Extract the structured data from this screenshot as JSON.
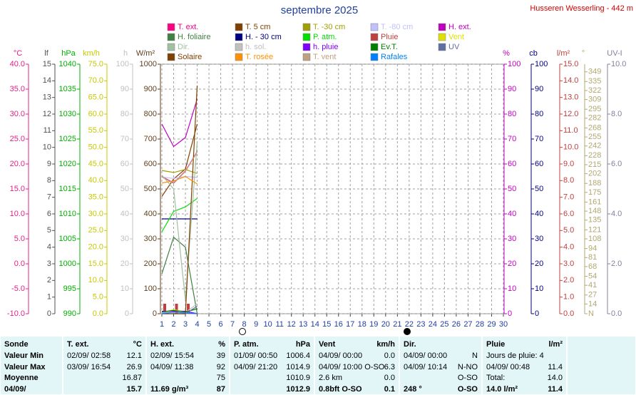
{
  "chart_data": {
    "type": "line",
    "title": "septembre 2025",
    "subtitle": "Husseren Wesserling - 442 m",
    "xlim": [
      1,
      30
    ],
    "xticks": [
      1,
      2,
      3,
      4,
      5,
      6,
      7,
      8,
      9,
      10,
      11,
      12,
      13,
      14,
      15,
      16,
      17,
      18,
      19,
      20,
      21,
      22,
      23,
      24,
      25,
      26,
      27,
      28,
      29,
      30
    ],
    "x": [
      1,
      2,
      3,
      4
    ],
    "axes": [
      {
        "label": "°C",
        "color": "#e0208a",
        "side": "left",
        "ylim": [
          -10,
          40
        ],
        "yticks": [
          {
            "value": -10,
            "label": "-10.0"
          },
          {
            "value": -5,
            "label": "-5.0"
          },
          {
            "value": 0,
            "label": "0.0"
          },
          {
            "value": 5,
            "label": "5.0"
          },
          {
            "value": 10,
            "label": "10.0"
          },
          {
            "value": 15,
            "label": "15.0"
          },
          {
            "value": 20,
            "label": "20.0"
          },
          {
            "value": 25,
            "label": "25.0"
          },
          {
            "value": 30,
            "label": "30.0"
          },
          {
            "value": 35,
            "label": "35.0"
          },
          {
            "value": 40,
            "label": "40.0"
          }
        ]
      },
      {
        "label": "lf",
        "color": "#505050",
        "side": "left",
        "ylim": [
          0,
          15
        ],
        "yticks": [
          0,
          1,
          2,
          3,
          4,
          5,
          6,
          7,
          8,
          9,
          10,
          11,
          12,
          13,
          14,
          15
        ]
      },
      {
        "label": "hPa",
        "color": "#00b000",
        "side": "left",
        "ylim": [
          990,
          1040
        ],
        "yticks": [
          990,
          995,
          1000,
          1005,
          1010,
          1015,
          1020,
          1025,
          1030,
          1035,
          1040
        ]
      },
      {
        "label": "km/h",
        "color": "#c8c800",
        "side": "left",
        "ylim": [
          0,
          75
        ],
        "yticks": [
          {
            "value": 0,
            "label": "0.0"
          },
          {
            "value": 5,
            "label": "5.0"
          },
          {
            "value": 10,
            "label": "10.0"
          },
          {
            "value": 15,
            "label": "15.0"
          },
          {
            "value": 20,
            "label": "20.0"
          },
          {
            "value": 25,
            "label": "25.0"
          },
          {
            "value": 30,
            "label": "30.0"
          },
          {
            "value": 35,
            "label": "35.0"
          },
          {
            "value": 40,
            "label": "40.0"
          },
          {
            "value": 45,
            "label": "45.0"
          },
          {
            "value": 50,
            "label": "50.0"
          },
          {
            "value": 55,
            "label": "55.0"
          },
          {
            "value": 60,
            "label": "60.0"
          },
          {
            "value": 65,
            "label": "65.0"
          },
          {
            "value": 70,
            "label": "70.0"
          },
          {
            "value": 75,
            "label": "75.0"
          }
        ]
      },
      {
        "label": "h",
        "color": "#c0c0c0",
        "side": "left",
        "ylim": [
          0,
          100
        ],
        "yticks": [
          0,
          10,
          20,
          30,
          40,
          50,
          60,
          70,
          80,
          90,
          100
        ]
      },
      {
        "label": "W/m²",
        "color": "#604020",
        "side": "left",
        "grid": true,
        "ylim": [
          0,
          1000
        ],
        "yticks": [
          0,
          100,
          200,
          300,
          400,
          500,
          600,
          700,
          800,
          900,
          1000
        ]
      },
      {
        "label": "%",
        "color": "#c000c0",
        "side": "right",
        "ylim": [
          0,
          100
        ],
        "yticks": [
          0,
          10,
          20,
          30,
          40,
          50,
          60,
          70,
          80,
          90,
          100
        ]
      },
      {
        "label": "cb",
        "color": "#000080",
        "side": "right",
        "ylim": [
          0,
          100
        ],
        "yticks": [
          0,
          10,
          20,
          30,
          40,
          50,
          60,
          70,
          80,
          90,
          100
        ]
      },
      {
        "label": "l/m²",
        "color": "#c04040",
        "side": "right",
        "ylim": [
          0,
          15
        ],
        "yticks": [
          {
            "value": 0,
            "label": "0.0"
          },
          {
            "value": 1,
            "label": "1.0"
          },
          {
            "value": 2,
            "label": "2.0"
          },
          {
            "value": 3,
            "label": "3.0"
          },
          {
            "value": 4,
            "label": "4.0"
          },
          {
            "value": 5,
            "label": "5.0"
          },
          {
            "value": 6,
            "label": "6.0"
          },
          {
            "value": 7,
            "label": "7.0"
          },
          {
            "value": 8,
            "label": "8.0"
          },
          {
            "value": 9,
            "label": "9.0"
          },
          {
            "value": 10,
            "label": "10.0"
          },
          {
            "value": 11,
            "label": "11.0"
          },
          {
            "value": 12,
            "label": "12.0"
          },
          {
            "value": 13,
            "label": "13.0"
          },
          {
            "value": 14,
            "label": "14.0"
          },
          {
            "value": 15,
            "label": "15.0"
          }
        ]
      },
      {
        "label": "°",
        "color": "#b0a870",
        "side": "right",
        "ylim": [
          0,
          360
        ],
        "yticks": [
          {
            "value": 0,
            "label": "N"
          },
          14,
          27,
          41,
          54,
          68,
          81,
          94,
          108,
          121,
          135,
          148,
          161,
          175,
          188,
          202,
          215,
          228,
          242,
          255,
          268,
          282,
          295,
          309,
          322,
          335,
          349
        ]
      },
      {
        "label": "UV-I",
        "color": "#8080a0",
        "side": "right",
        "ylim": [
          0,
          10
        ],
        "yticks": [
          {
            "value": 0,
            "label": "0.0"
          },
          {
            "value": 2,
            "label": "2.0"
          },
          {
            "value": 4,
            "label": "4.0"
          },
          {
            "value": 6,
            "label": "6.0"
          },
          {
            "value": 8,
            "label": "8.0"
          },
          {
            "value": 10,
            "label": "10.0"
          }
        ]
      }
    ],
    "series": [
      {
        "name": "T. ext.",
        "color": "#ff0080",
        "axis": 0,
        "values": [
          17.5,
          16.2,
          18.6,
          22.5
        ]
      },
      {
        "name": "T. 5 cm",
        "color": "#804000",
        "axis": 0,
        "values": [
          13.5,
          17,
          19,
          28
        ]
      },
      {
        "name": "T. -30 cm",
        "color": "#a0a000",
        "axis": 0,
        "values": [
          18.7,
          18.3,
          18.9,
          18.1
        ]
      },
      {
        "name": "T. -80 cm",
        "color": "#c0c0ff",
        "axis": 0,
        "values": [
          17.4,
          17.1,
          17.5,
          17.3
        ]
      },
      {
        "name": "H. ext.",
        "color": "#c000c0",
        "axis": 6,
        "values": [
          76,
          67,
          70.6,
          86
        ]
      },
      {
        "name": "H. foliaire",
        "color": "#408040",
        "axis": 1,
        "values": [
          2.4,
          4.6,
          4.0,
          0
        ]
      },
      {
        "name": "H. - 30 cm",
        "color": "#000080",
        "axis": 7,
        "values": [
          38,
          38,
          38,
          38
        ]
      },
      {
        "name": "P. atm.",
        "color": "#00e000",
        "axis": 2,
        "values": [
          1006.4,
          1010.5,
          1011.4,
          1013.1
        ]
      },
      {
        "name": "Pluie",
        "color": "#c04040",
        "axis": 8,
        "style": "bar",
        "values": [
          0.6,
          0.6,
          0.6,
          0
        ]
      },
      {
        "name": "Vent",
        "color": "#e0e000",
        "axis": 3,
        "values": [
          0.4,
          1.2,
          0.6,
          0.1
        ]
      },
      {
        "name": "Dir.",
        "color": "#a0c0a0",
        "axis": 9,
        "values": [
          200,
          180,
          20,
          248
        ]
      },
      {
        "name": "h. sol.",
        "color": "#c0c0c0",
        "axis": 4,
        "values": [
          0.5,
          0.5,
          0.5,
          4
        ]
      },
      {
        "name": "h. pluie",
        "color": "#8000ff",
        "axis": 4,
        "values": [
          1,
          1,
          1,
          0
        ]
      },
      {
        "name": "Ev.T.",
        "color": "#008000",
        "axis": 8,
        "values": [
          0.1,
          0.2,
          0.1,
          0.3
        ]
      },
      {
        "name": "UV",
        "color": "#6070a0",
        "axis": 10,
        "values": [
          0,
          0,
          0,
          0.3
        ]
      },
      {
        "name": "Solaire",
        "color": "#804000",
        "axis": 5,
        "values": [
          0,
          0,
          0,
          914
        ]
      },
      {
        "name": "T. rosée",
        "color": "#ff9000",
        "axis": 0,
        "values": [
          16.2,
          16.6,
          17.5,
          16
        ]
      },
      {
        "name": "T. vent",
        "color": "#c0a080",
        "axis": 0,
        "values": [
          17.4,
          16.1,
          18.5,
          22.4
        ]
      },
      {
        "name": "Rafales",
        "color": "#0080ff",
        "axis": 3,
        "values": [
          0,
          0.5,
          0.2,
          0
        ]
      }
    ]
  },
  "table": {
    "header": [
      "Sonde",
      "T. ext.",
      "°C",
      "H. ext.",
      "%",
      "P. atm.",
      "hPa",
      "Vent",
      "km/h",
      "Dir.",
      null,
      "Pluie",
      "l/m²"
    ],
    "rows": [
      [
        "Valeur Min",
        "02/09/ 02:58",
        "12.1",
        "02/09/ 15:54",
        "39",
        "01/09/ 00:50",
        "1006.4",
        "04/09/ 00:00",
        "0.0",
        "04/09/ 00:00",
        "N",
        "Jours de pluie: 4",
        null
      ],
      [
        "Valeur Max",
        "03/09/ 16:54",
        "26.9",
        "04/09/ 11:38",
        "92",
        "04/09/ 21:20",
        "1014.9",
        "04/09/ 10:00 O-SO",
        "6.3",
        "04/09/ 10:14",
        "N-NO",
        "04/09/ 00:48",
        "11.4"
      ],
      [
        "Moyenne",
        null,
        "16.87",
        null,
        "75",
        null,
        "1010.9",
        "2.6 km",
        "0.0",
        null,
        "O-SO",
        "Total:",
        "14.0"
      ],
      [
        "04/09/",
        null,
        "15.7",
        "11.69 g/m³",
        "87",
        null,
        "1012.9",
        "0.8bft O-SO",
        "0.1",
        "248 °",
        "O-SO",
        "14.0 l/m²",
        "11.4"
      ]
    ]
  }
}
